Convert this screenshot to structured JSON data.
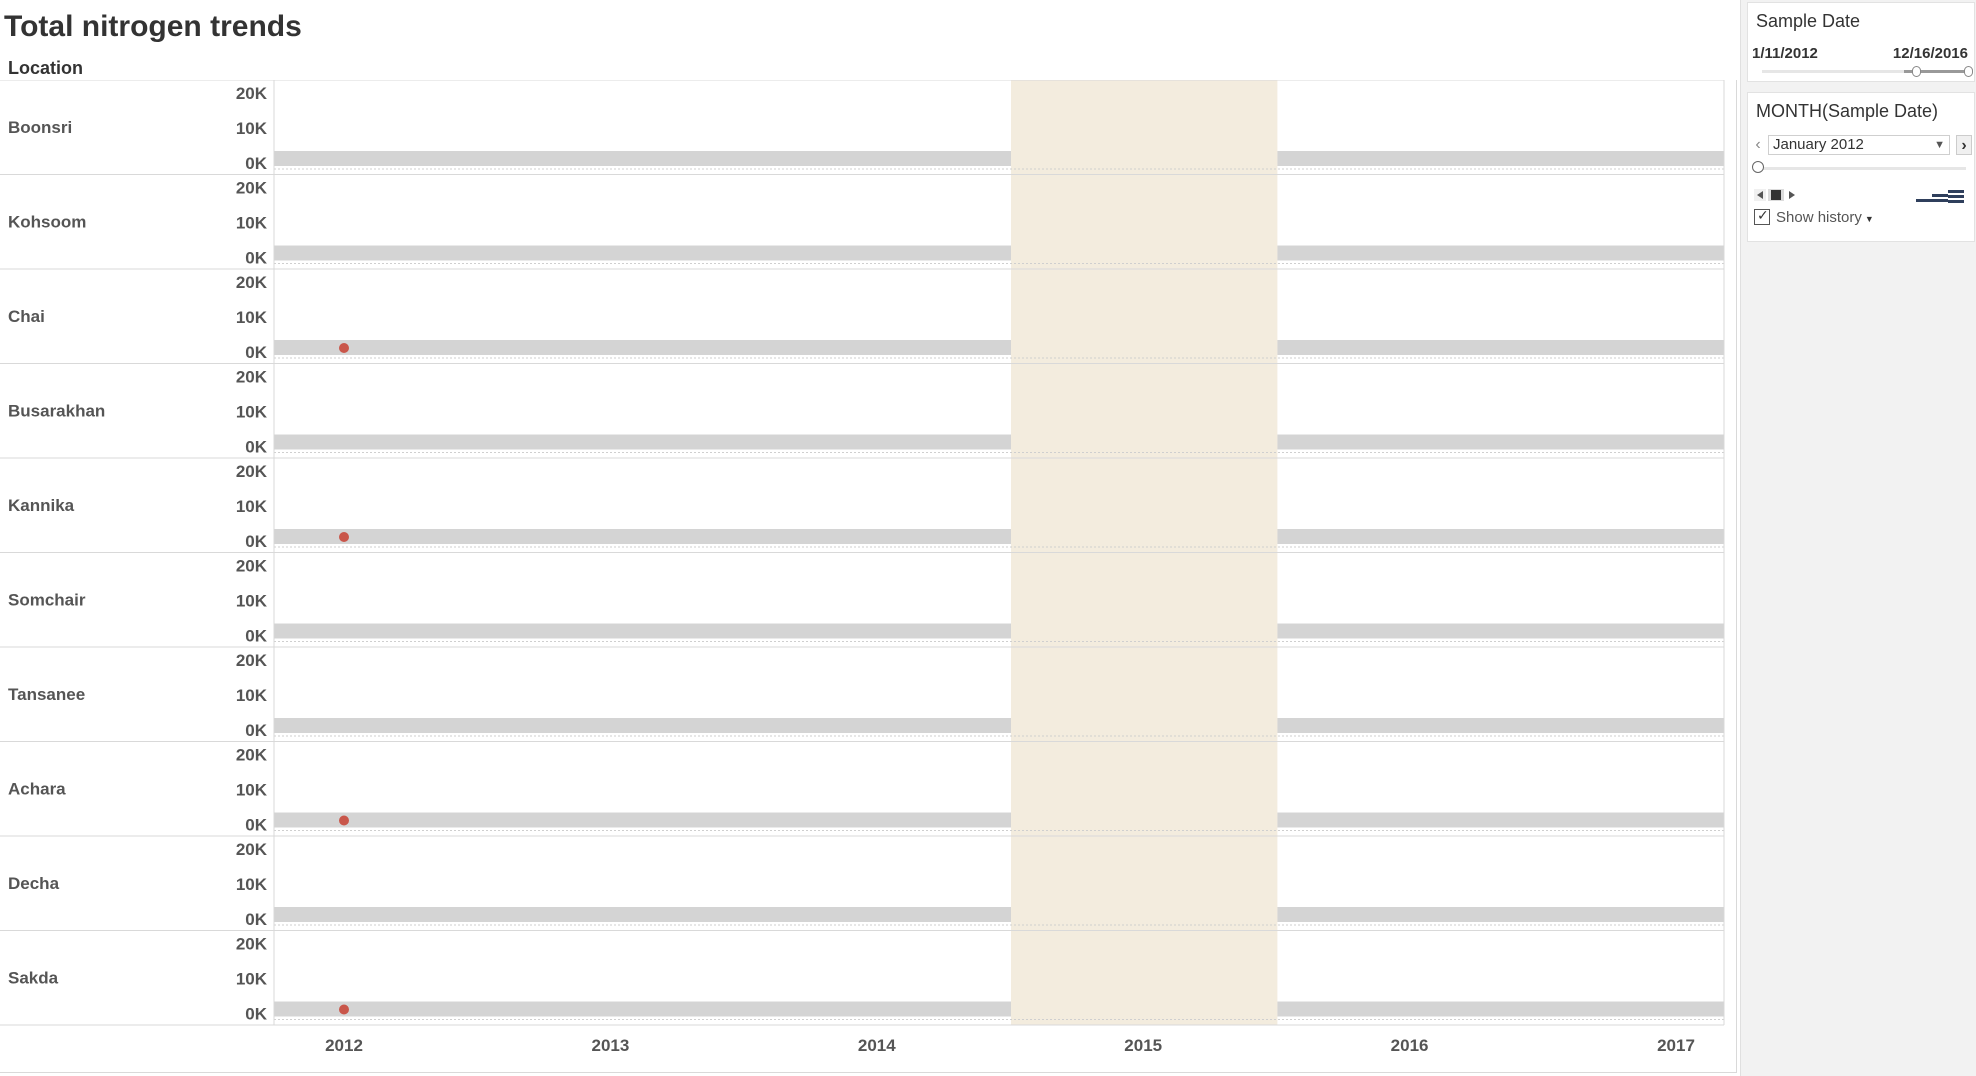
{
  "dashboard": {
    "title": "Total nitrogen trends",
    "row_header": "Location"
  },
  "filters": {
    "sample_date": {
      "title": "Sample Date",
      "min_label": "1/11/2012",
      "max_label": "12/16/2016"
    },
    "month_filter": {
      "title": "MONTH(Sample Date)",
      "selected": "January 2012",
      "show_history_label": "Show history",
      "show_history_checked": true
    }
  },
  "colors": {
    "point": "#c9564a",
    "band": "#d4d4d4",
    "highlight": "#f3ecde",
    "axis_text": "#555555",
    "grid": "#d9d9d9"
  },
  "chart_data": {
    "type": "scatter",
    "row_field": "Location",
    "rows": [
      "Boonsri",
      "Kohsoom",
      "Chai",
      "Busarakhan",
      "Kannika",
      "Somchair",
      "Tansanee",
      "Achara",
      "Decha",
      "Sakda"
    ],
    "y_ticks": [
      "20K",
      "10K",
      "0K"
    ],
    "ylim": [
      0,
      20000
    ],
    "x_ticks": [
      "2012",
      "2013",
      "2014",
      "2015",
      "2016",
      "2017"
    ],
    "xlim": [
      2012,
      2017
    ],
    "highlighted_year": "2015",
    "series": [
      {
        "points": [
          {
            "location": "Chai",
            "x": "2012",
            "y": 0
          },
          {
            "location": "Kannika",
            "x": "2012",
            "y": 0
          },
          {
            "location": "Achara",
            "x": "2012",
            "y": 0
          },
          {
            "location": "Sakda",
            "x": "2012",
            "y": 0
          }
        ]
      }
    ]
  }
}
